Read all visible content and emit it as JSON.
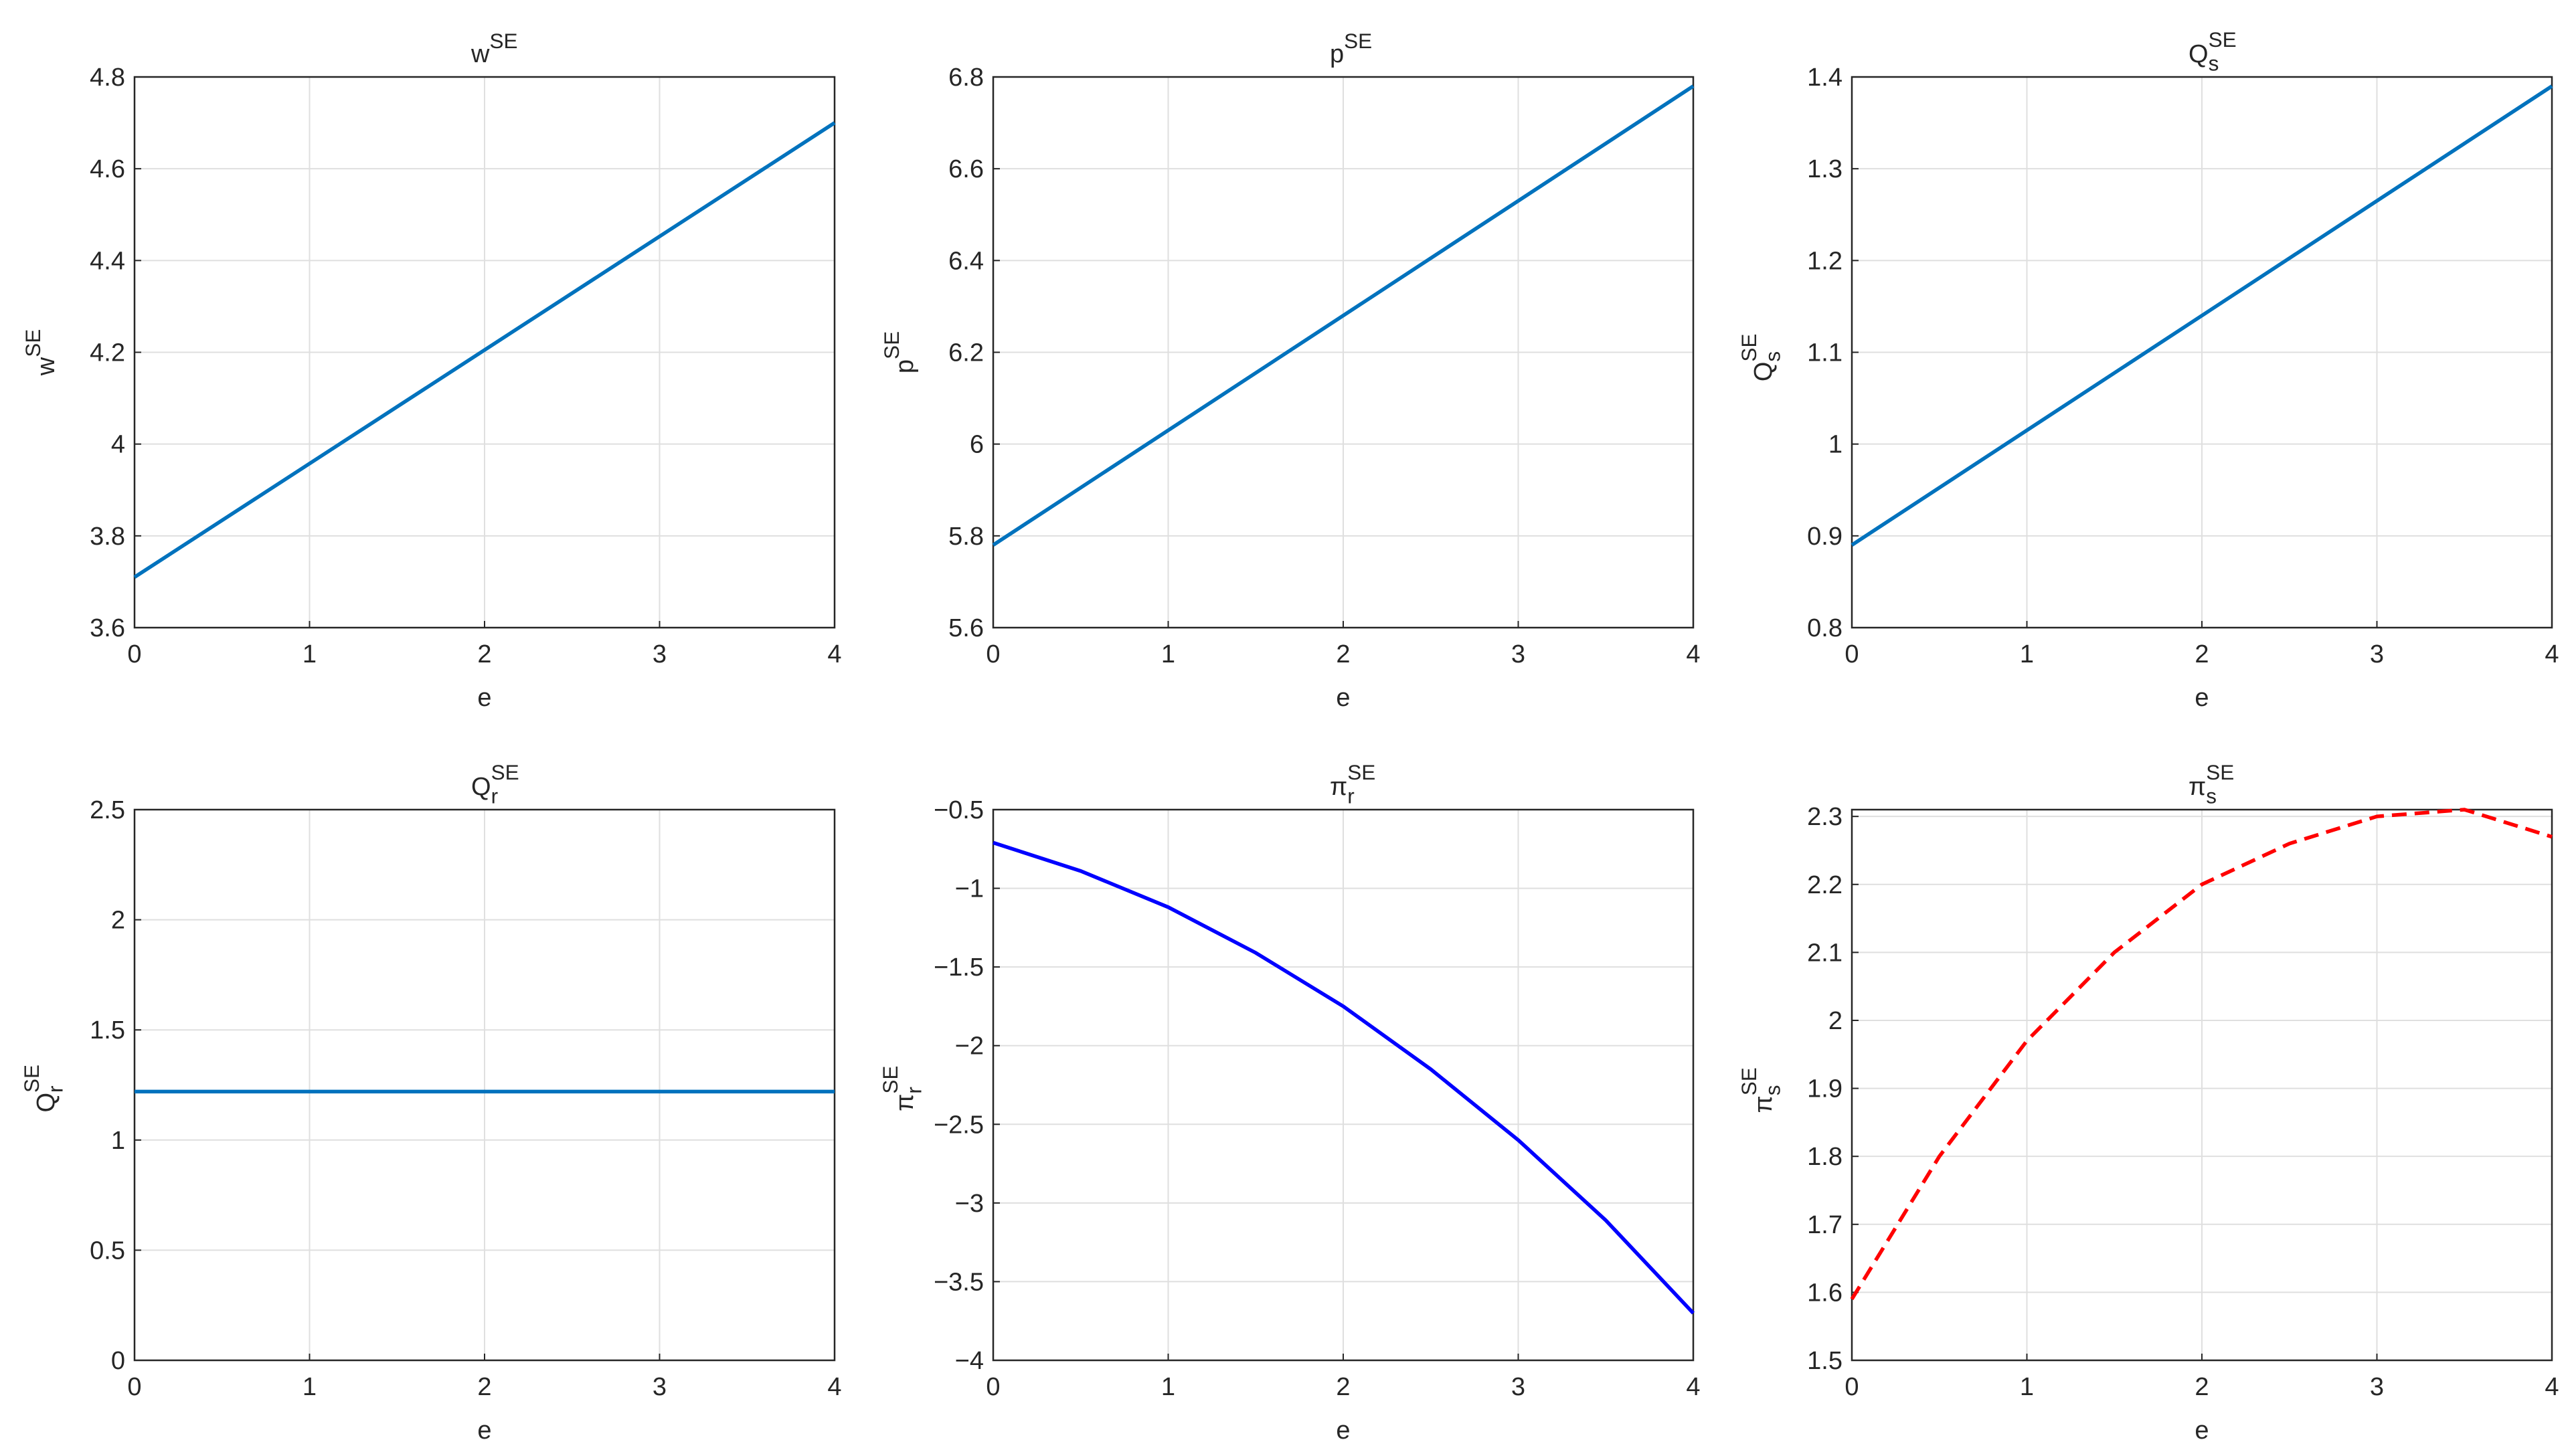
{
  "chart_data": [
    {
      "type": "line",
      "title": {
        "base": "w",
        "sup": "SE"
      },
      "xlabel": "e",
      "ylabel": {
        "base": "w",
        "sup": "SE"
      },
      "x": [
        0,
        4
      ],
      "series": [
        {
          "color": "#0072bd",
          "values": [
            3.71,
            4.7
          ]
        }
      ],
      "xlim": [
        0,
        4
      ],
      "xticks": [
        0,
        1,
        2,
        3,
        4
      ],
      "ylim": [
        3.6,
        4.8
      ],
      "yticks": [
        3.6,
        3.8,
        4,
        4.2,
        4.4,
        4.6,
        4.8
      ],
      "grid": true
    },
    {
      "type": "line",
      "title": {
        "base": "p",
        "sup": "SE"
      },
      "xlabel": "e",
      "ylabel": {
        "base": "p",
        "sup": "SE"
      },
      "x": [
        0,
        4
      ],
      "series": [
        {
          "color": "#0072bd",
          "values": [
            5.78,
            6.78
          ]
        }
      ],
      "xlim": [
        0,
        4
      ],
      "xticks": [
        0,
        1,
        2,
        3,
        4
      ],
      "ylim": [
        5.6,
        6.8
      ],
      "yticks": [
        5.6,
        5.8,
        6,
        6.2,
        6.4,
        6.6,
        6.8
      ],
      "grid": true
    },
    {
      "type": "line",
      "title": {
        "base": "Q",
        "sub": "s",
        "sup": "SE"
      },
      "xlabel": "e",
      "ylabel": {
        "base": "Q",
        "sub": "s",
        "sup": "SE"
      },
      "x": [
        0,
        4
      ],
      "series": [
        {
          "color": "#0072bd",
          "values": [
            0.89,
            1.39
          ]
        }
      ],
      "xlim": [
        0,
        4
      ],
      "xticks": [
        0,
        1,
        2,
        3,
        4
      ],
      "ylim": [
        0.8,
        1.4
      ],
      "yticks": [
        0.8,
        0.9,
        1,
        1.1,
        1.2,
        1.3,
        1.4
      ],
      "grid": true
    },
    {
      "type": "line",
      "title": {
        "base": "Q",
        "sub": "r",
        "sup": "SE"
      },
      "xlabel": "e",
      "ylabel": {
        "base": "Q",
        "sub": "r",
        "sup": "SE"
      },
      "x": [
        0,
        4
      ],
      "series": [
        {
          "color": "#0072bd",
          "values": [
            1.22,
            1.22
          ]
        }
      ],
      "xlim": [
        0,
        4
      ],
      "xticks": [
        0,
        1,
        2,
        3,
        4
      ],
      "ylim": [
        0,
        2.5
      ],
      "yticks": [
        0,
        0.5,
        1,
        1.5,
        2,
        2.5
      ],
      "grid": true
    },
    {
      "type": "line",
      "title": {
        "base": "π",
        "sub": "r",
        "sup": "SE"
      },
      "xlabel": "e",
      "ylabel": {
        "base": "π",
        "sub": "r",
        "sup": "SE"
      },
      "x": [
        0,
        0.5,
        1,
        1.5,
        2,
        2.5,
        3,
        3.5,
        4
      ],
      "series": [
        {
          "color": "#0000ff",
          "values": [
            -0.71,
            -0.89,
            -1.12,
            -1.41,
            -1.75,
            -2.15,
            -2.6,
            -3.11,
            -3.7
          ]
        }
      ],
      "xlim": [
        0,
        4
      ],
      "xticks": [
        0,
        1,
        2,
        3,
        4
      ],
      "ylim": [
        -4,
        -0.5
      ],
      "yticks": [
        {
          "value": -4,
          "label": "−4"
        },
        {
          "value": -3.5,
          "label": "−3.5"
        },
        {
          "value": -3,
          "label": "−3"
        },
        {
          "value": -2.5,
          "label": "−2.5"
        },
        {
          "value": -2,
          "label": "−2"
        },
        {
          "value": -1.5,
          "label": "−1.5"
        },
        {
          "value": -1,
          "label": "−1"
        },
        {
          "value": -0.5,
          "label": "−0.5"
        }
      ],
      "grid": true
    },
    {
      "type": "line",
      "title": {
        "base": "π",
        "sub": "s",
        "sup": "SE"
      },
      "xlabel": "e",
      "ylabel": {
        "base": "π",
        "sub": "s",
        "sup": "SE"
      },
      "x": [
        0,
        0.5,
        1,
        1.5,
        2,
        2.5,
        3,
        3.5,
        4
      ],
      "series": [
        {
          "color": "#ff0000",
          "line_style": "dashed",
          "values": [
            1.59,
            1.8,
            1.97,
            2.1,
            2.2,
            2.26,
            2.3,
            2.31,
            2.27
          ]
        }
      ],
      "xlim": [
        0,
        4
      ],
      "xticks": [
        0,
        1,
        2,
        3,
        4
      ],
      "ylim": [
        1.5,
        2.31
      ],
      "yticks": [
        1.5,
        1.6,
        1.7,
        1.8,
        1.9,
        2,
        2.1,
        2.2,
        2.3
      ],
      "grid": true
    }
  ]
}
